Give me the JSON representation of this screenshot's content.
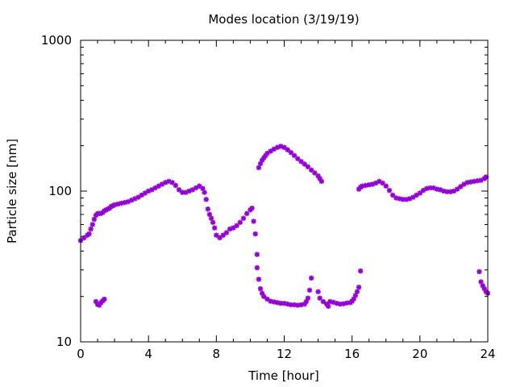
{
  "chart_data": {
    "type": "scatter",
    "title": "Modes location (3/19/19)",
    "xlabel": "Time [hour]",
    "ylabel": "Particle size [nm]",
    "xlim": [
      0,
      24
    ],
    "ylim": [
      10,
      1000
    ],
    "yscale": "log",
    "xticks": [
      0,
      4,
      8,
      12,
      16,
      20,
      24
    ],
    "xtick_labels": [
      "0",
      "4",
      "8",
      "12",
      "16",
      "20",
      "24"
    ],
    "yticks": [
      10,
      100,
      1000
    ],
    "ytick_labels": [
      "10",
      "100",
      "1000"
    ],
    "grid": false,
    "legend": "none",
    "marker_color": "#9400D3",
    "series": [
      {
        "values": [
          [
            0.0,
            47
          ],
          [
            0.2,
            49
          ],
          [
            0.4,
            51
          ],
          [
            0.5,
            52
          ],
          [
            0.6,
            56
          ],
          [
            0.7,
            60
          ],
          [
            0.8,
            65
          ],
          [
            0.9,
            69
          ],
          [
            1.0,
            71
          ],
          [
            1.1,
            71
          ],
          [
            1.2,
            71
          ],
          [
            1.3,
            72
          ],
          [
            1.4,
            74
          ],
          [
            1.5,
            75
          ],
          [
            1.6,
            76
          ],
          [
            1.7,
            77
          ],
          [
            1.8,
            79
          ],
          [
            1.9,
            80
          ],
          [
            2.0,
            81
          ],
          [
            2.2,
            82
          ],
          [
            2.4,
            83
          ],
          [
            2.6,
            84
          ],
          [
            2.8,
            85
          ],
          [
            3.0,
            87
          ],
          [
            3.2,
            89
          ],
          [
            3.4,
            91
          ],
          [
            3.6,
            94
          ],
          [
            3.8,
            97
          ],
          [
            4.0,
            100
          ],
          [
            4.2,
            102
          ],
          [
            4.4,
            105
          ],
          [
            4.6,
            108
          ],
          [
            4.8,
            111
          ],
          [
            5.0,
            114
          ],
          [
            5.2,
            116
          ],
          [
            5.4,
            114
          ],
          [
            5.6,
            109
          ],
          [
            5.8,
            102
          ],
          [
            6.0,
            98
          ],
          [
            6.2,
            98
          ],
          [
            6.4,
            100
          ],
          [
            6.6,
            102
          ],
          [
            6.8,
            105
          ],
          [
            7.0,
            108
          ],
          [
            7.2,
            104
          ],
          [
            7.3,
            98
          ],
          [
            7.4,
            88
          ],
          [
            7.5,
            76
          ],
          [
            7.6,
            70
          ],
          [
            7.7,
            66
          ],
          [
            7.8,
            62
          ],
          [
            7.9,
            57
          ],
          [
            8.0,
            51
          ],
          [
            8.2,
            49
          ],
          [
            8.4,
            51
          ],
          [
            8.6,
            53
          ],
          [
            8.8,
            56
          ],
          [
            9.0,
            57
          ],
          [
            9.2,
            59
          ],
          [
            9.4,
            62
          ],
          [
            9.6,
            66
          ],
          [
            9.8,
            71
          ],
          [
            10.0,
            75
          ],
          [
            10.1,
            77
          ],
          [
            10.2,
            63
          ],
          [
            10.3,
            52
          ],
          [
            10.4,
            38
          ],
          [
            10.5,
            143
          ],
          [
            10.6,
            152
          ],
          [
            10.7,
            160
          ],
          [
            10.8,
            166
          ],
          [
            10.9,
            172
          ],
          [
            11.0,
            178
          ],
          [
            11.2,
            184
          ],
          [
            11.4,
            190
          ],
          [
            11.6,
            195
          ],
          [
            11.8,
            198
          ],
          [
            12.0,
            195
          ],
          [
            12.2,
            188
          ],
          [
            12.4,
            180
          ],
          [
            12.6,
            172
          ],
          [
            12.8,
            164
          ],
          [
            13.0,
            157
          ],
          [
            13.2,
            151
          ],
          [
            13.4,
            145
          ],
          [
            13.6,
            138
          ],
          [
            13.8,
            132
          ],
          [
            14.0,
            126
          ],
          [
            14.1,
            121
          ],
          [
            14.2,
            116
          ],
          [
            16.4,
            103
          ],
          [
            16.5,
            106
          ],
          [
            16.6,
            108
          ],
          [
            16.8,
            109
          ],
          [
            17.0,
            110
          ],
          [
            17.2,
            111
          ],
          [
            17.4,
            113
          ],
          [
            17.6,
            116
          ],
          [
            17.8,
            113
          ],
          [
            18.0,
            108
          ],
          [
            18.2,
            101
          ],
          [
            18.4,
            94
          ],
          [
            18.6,
            90
          ],
          [
            18.8,
            89
          ],
          [
            19.0,
            88
          ],
          [
            19.2,
            88
          ],
          [
            19.4,
            89
          ],
          [
            19.6,
            91
          ],
          [
            19.8,
            94
          ],
          [
            20.0,
            97
          ],
          [
            20.2,
            101
          ],
          [
            20.4,
            104
          ],
          [
            20.6,
            105
          ],
          [
            20.8,
            105
          ],
          [
            21.0,
            103
          ],
          [
            21.2,
            102
          ],
          [
            21.4,
            100
          ],
          [
            21.6,
            99
          ],
          [
            21.8,
            99
          ],
          [
            22.0,
            100
          ],
          [
            22.2,
            103
          ],
          [
            22.4,
            107
          ],
          [
            22.6,
            111
          ],
          [
            22.8,
            114
          ],
          [
            23.0,
            115
          ],
          [
            23.2,
            116
          ],
          [
            23.4,
            117
          ],
          [
            23.6,
            118
          ],
          [
            23.8,
            121
          ],
          [
            23.9,
            124
          ],
          [
            0.9,
            18.5
          ],
          [
            1.0,
            17.7
          ],
          [
            1.1,
            17.5
          ],
          [
            1.2,
            18.2
          ],
          [
            1.3,
            18.7
          ],
          [
            1.4,
            19.2
          ],
          [
            10.4,
            31
          ],
          [
            10.5,
            26
          ],
          [
            10.6,
            22.5
          ],
          [
            10.7,
            21
          ],
          [
            10.8,
            20
          ],
          [
            11.0,
            19.2
          ],
          [
            11.2,
            18.6
          ],
          [
            11.4,
            18.4
          ],
          [
            11.6,
            18.2
          ],
          [
            11.8,
            18.0
          ],
          [
            12.0,
            18.0
          ],
          [
            12.2,
            17.8
          ],
          [
            12.4,
            17.6
          ],
          [
            12.6,
            17.6
          ],
          [
            12.8,
            17.5
          ],
          [
            13.0,
            17.6
          ],
          [
            13.2,
            17.8
          ],
          [
            13.3,
            18.5
          ],
          [
            13.4,
            19.5
          ],
          [
            13.5,
            22
          ],
          [
            13.6,
            26.5
          ],
          [
            14.0,
            21.5
          ],
          [
            14.1,
            19.5
          ],
          [
            14.3,
            18.5
          ],
          [
            14.5,
            17.8
          ],
          [
            14.6,
            17.2
          ],
          [
            14.7,
            18.5
          ],
          [
            14.9,
            18.3
          ],
          [
            15.1,
            18.0
          ],
          [
            15.3,
            17.8
          ],
          [
            15.5,
            17.9
          ],
          [
            15.7,
            18.1
          ],
          [
            15.9,
            18.2
          ],
          [
            16.0,
            18.6
          ],
          [
            16.1,
            19.3
          ],
          [
            16.2,
            20.3
          ],
          [
            16.3,
            21.5
          ],
          [
            16.4,
            23
          ],
          [
            16.5,
            29.5
          ],
          [
            23.5,
            29.2
          ],
          [
            23.6,
            25
          ],
          [
            23.7,
            23.6
          ],
          [
            23.8,
            22.5
          ],
          [
            23.9,
            21.5
          ],
          [
            24.0,
            21
          ]
        ]
      }
    ]
  }
}
